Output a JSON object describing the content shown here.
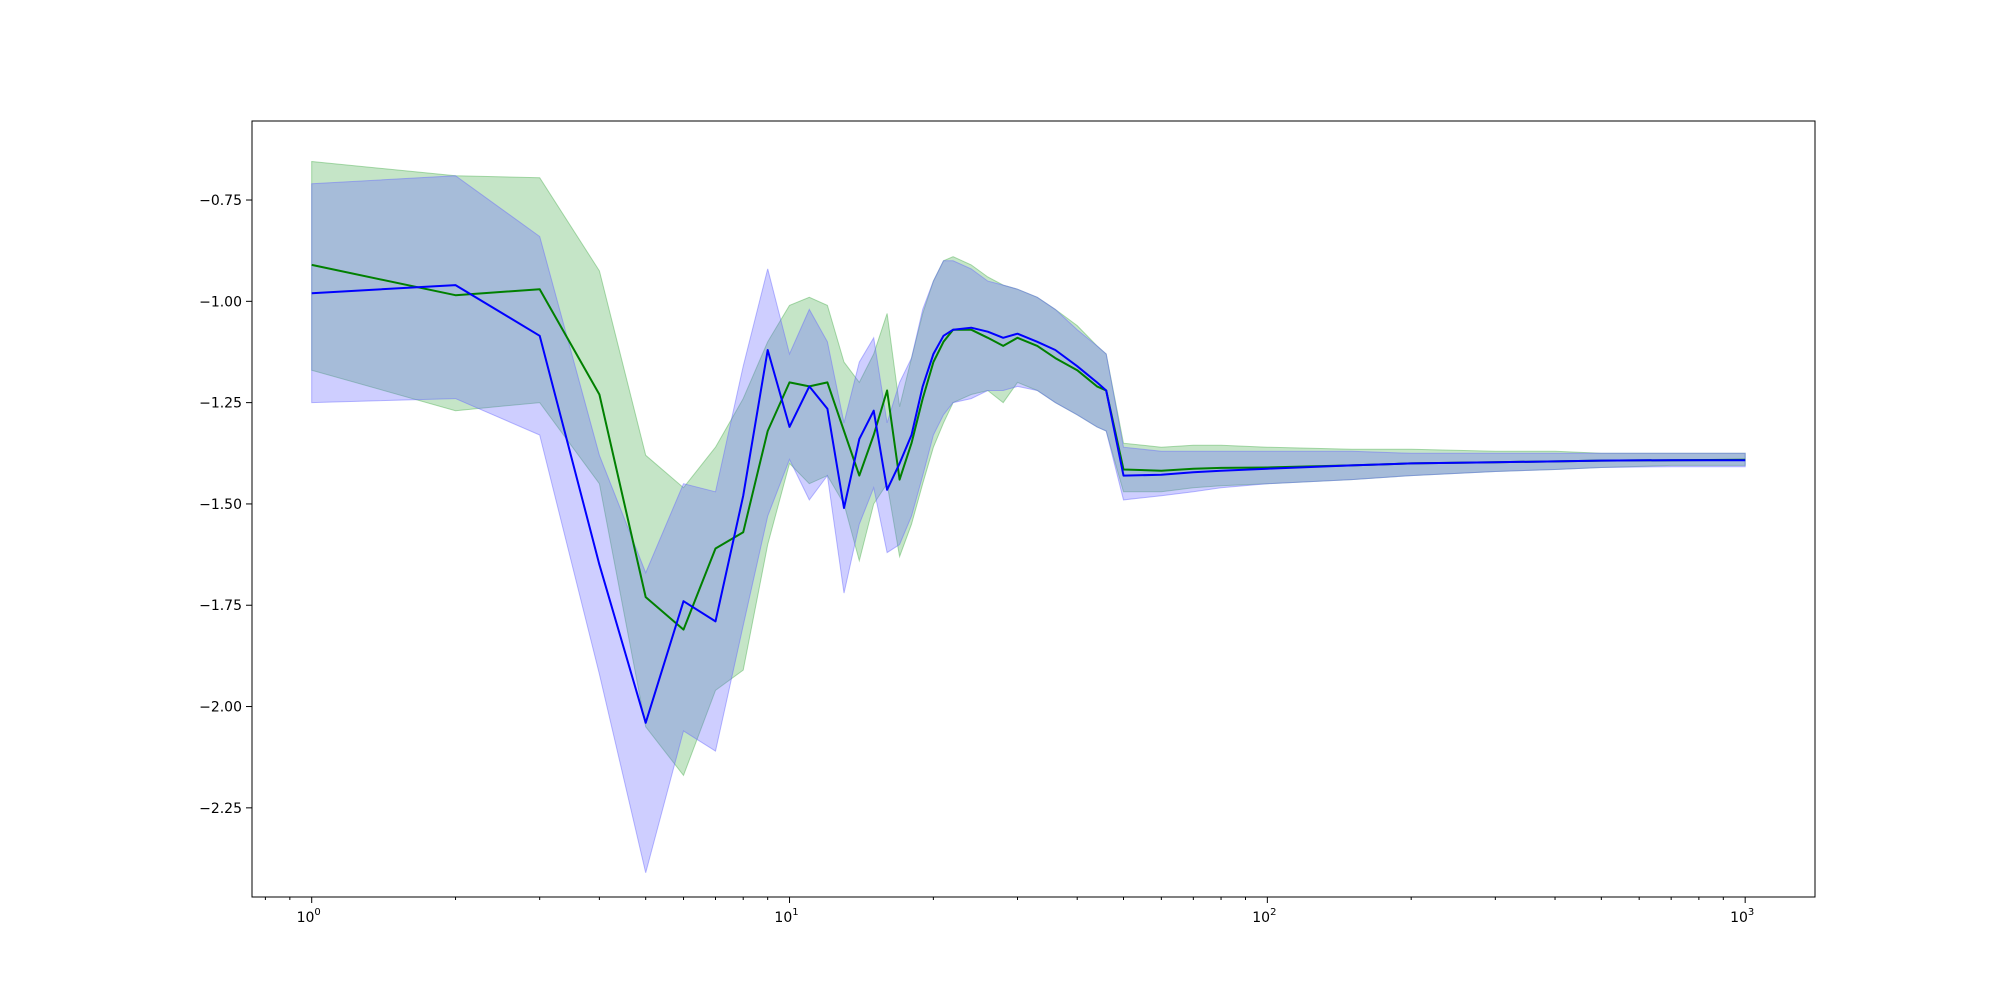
{
  "chart_data": {
    "type": "line",
    "title": "",
    "xlabel": "",
    "ylabel": "",
    "x_scale": "log",
    "xlim": [
      0.75,
      1400
    ],
    "ylim": [
      -2.47,
      -0.555
    ],
    "grid": false,
    "x_ticks": [
      {
        "value": 1,
        "base": "10",
        "exp": "0"
      },
      {
        "value": 10,
        "base": "10",
        "exp": "1"
      },
      {
        "value": 100,
        "base": "10",
        "exp": "2"
      },
      {
        "value": 1000,
        "base": "10",
        "exp": "3"
      }
    ],
    "y_ticks": [
      {
        "value": -0.75,
        "label": "−0.75"
      },
      {
        "value": -1.0,
        "label": "−1.00"
      },
      {
        "value": -1.25,
        "label": "−1.25"
      },
      {
        "value": -1.5,
        "label": "−1.50"
      },
      {
        "value": -1.75,
        "label": "−1.75"
      },
      {
        "value": -2.0,
        "label": "−2.00"
      },
      {
        "value": -2.25,
        "label": "−2.25"
      }
    ],
    "series": [
      {
        "color": "#008000",
        "band_color": "#4caf50",
        "x": [
          1,
          2,
          3,
          4,
          5,
          6,
          7,
          8,
          9,
          10,
          11,
          12,
          13,
          14,
          15,
          16,
          17,
          18,
          19,
          20,
          21,
          22,
          24,
          26,
          28,
          30,
          33,
          36,
          40,
          44,
          46,
          50,
          60,
          70,
          80,
          100,
          150,
          200,
          300,
          400,
          500,
          700,
          1000
        ],
        "y": [
          -0.91,
          -0.985,
          -0.97,
          -1.23,
          -1.73,
          -1.81,
          -1.61,
          -1.57,
          -1.32,
          -1.2,
          -1.21,
          -1.2,
          -1.32,
          -1.43,
          -1.33,
          -1.22,
          -1.44,
          -1.35,
          -1.24,
          -1.15,
          -1.1,
          -1.07,
          -1.07,
          -1.09,
          -1.11,
          -1.09,
          -1.11,
          -1.14,
          -1.17,
          -1.21,
          -1.22,
          -1.415,
          -1.418,
          -1.413,
          -1.411,
          -1.41,
          -1.405,
          -1.4,
          -1.397,
          -1.395,
          -1.393,
          -1.392,
          -1.391
        ],
        "lower": [
          -1.17,
          -1.27,
          -1.25,
          -1.45,
          -2.05,
          -2.17,
          -1.96,
          -1.91,
          -1.6,
          -1.4,
          -1.45,
          -1.43,
          -1.5,
          -1.64,
          -1.5,
          -1.45,
          -1.63,
          -1.55,
          -1.45,
          -1.36,
          -1.3,
          -1.25,
          -1.23,
          -1.22,
          -1.25,
          -1.2,
          -1.22,
          -1.25,
          -1.28,
          -1.31,
          -1.32,
          -1.47,
          -1.47,
          -1.46,
          -1.455,
          -1.45,
          -1.44,
          -1.43,
          -1.42,
          -1.415,
          -1.41,
          -1.405,
          -1.405
        ],
        "upper": [
          -0.655,
          -0.69,
          -0.695,
          -0.925,
          -1.38,
          -1.46,
          -1.36,
          -1.24,
          -1.1,
          -1.01,
          -0.99,
          -1.01,
          -1.15,
          -1.2,
          -1.13,
          -1.03,
          -1.26,
          -1.14,
          -1.03,
          -0.95,
          -0.9,
          -0.89,
          -0.91,
          -0.94,
          -0.96,
          -0.97,
          -0.99,
          -1.02,
          -1.06,
          -1.11,
          -1.13,
          -1.35,
          -1.36,
          -1.355,
          -1.355,
          -1.36,
          -1.365,
          -1.365,
          -1.37,
          -1.37,
          -1.375,
          -1.375,
          -1.375
        ]
      },
      {
        "color": "#0000ff",
        "band_color": "#6666ff",
        "x": [
          1,
          2,
          3,
          4,
          5,
          6,
          7,
          8,
          9,
          10,
          11,
          12,
          13,
          14,
          15,
          16,
          17,
          18,
          19,
          20,
          21,
          22,
          24,
          26,
          28,
          30,
          33,
          36,
          40,
          44,
          46,
          50,
          60,
          70,
          80,
          100,
          150,
          200,
          300,
          400,
          500,
          700,
          1000
        ],
        "y": [
          -0.98,
          -0.96,
          -1.085,
          -1.65,
          -2.04,
          -1.74,
          -1.79,
          -1.48,
          -1.12,
          -1.31,
          -1.21,
          -1.265,
          -1.51,
          -1.34,
          -1.27,
          -1.465,
          -1.4,
          -1.33,
          -1.21,
          -1.13,
          -1.085,
          -1.07,
          -1.065,
          -1.075,
          -1.09,
          -1.08,
          -1.1,
          -1.12,
          -1.16,
          -1.2,
          -1.22,
          -1.43,
          -1.428,
          -1.422,
          -1.418,
          -1.413,
          -1.405,
          -1.4,
          -1.397,
          -1.395,
          -1.393,
          -1.392,
          -1.392
        ],
        "lower": [
          -1.25,
          -1.24,
          -1.33,
          -1.92,
          -2.41,
          -2.06,
          -2.11,
          -1.8,
          -1.53,
          -1.39,
          -1.49,
          -1.43,
          -1.72,
          -1.55,
          -1.46,
          -1.62,
          -1.6,
          -1.53,
          -1.43,
          -1.33,
          -1.28,
          -1.25,
          -1.24,
          -1.22,
          -1.22,
          -1.21,
          -1.22,
          -1.25,
          -1.28,
          -1.31,
          -1.32,
          -1.49,
          -1.48,
          -1.47,
          -1.46,
          -1.45,
          -1.44,
          -1.43,
          -1.42,
          -1.415,
          -1.41,
          -1.408,
          -1.408
        ],
        "upper": [
          -0.71,
          -0.69,
          -0.84,
          -1.38,
          -1.67,
          -1.45,
          -1.47,
          -1.16,
          -0.92,
          -1.13,
          -1.02,
          -1.1,
          -1.3,
          -1.15,
          -1.09,
          -1.3,
          -1.2,
          -1.14,
          -1.02,
          -0.95,
          -0.9,
          -0.9,
          -0.92,
          -0.95,
          -0.96,
          -0.97,
          -0.99,
          -1.02,
          -1.07,
          -1.11,
          -1.13,
          -1.36,
          -1.37,
          -1.37,
          -1.37,
          -1.37,
          -1.37,
          -1.375,
          -1.375,
          -1.375,
          -1.375,
          -1.375,
          -1.375
        ]
      }
    ]
  }
}
